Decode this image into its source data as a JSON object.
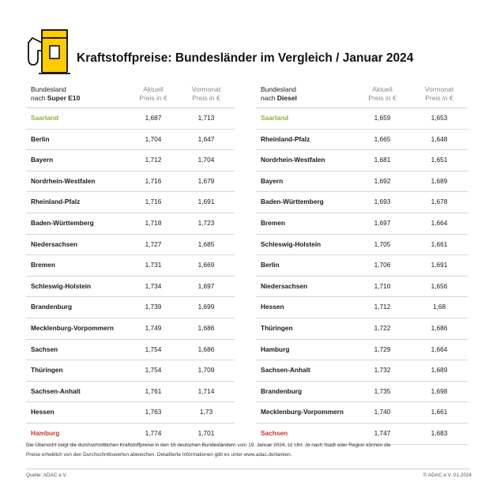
{
  "header": {
    "title": "Kraftstoffpreise: Bundesländer im Vergleich / Januar 2024"
  },
  "colors": {
    "cheapest": "#8fb339",
    "most_expensive": "#c0392b",
    "pump_yellow": "#ffcc00"
  },
  "icons": [
    "fuel-pump-icon"
  ],
  "super_e10": {
    "col1_line1": "Bundesland",
    "col1_line2_prefix": "nach ",
    "col1_line2_bold": "Super E10",
    "col2_line1": "Aktuell",
    "col2_line2": "Preis in €",
    "col3_line1": "Vormonat",
    "col3_line2": "Preis in €",
    "rows": [
      {
        "name": "Saarland",
        "current": "1,687",
        "previous": "1,713",
        "highlight": "green"
      },
      {
        "name": "Berlin",
        "current": "1,704",
        "previous": "1,647"
      },
      {
        "name": "Bayern",
        "current": "1,712",
        "previous": "1,704"
      },
      {
        "name": "Nordrhein-Westfalen",
        "current": "1,716",
        "previous": "1,679"
      },
      {
        "name": "Rheinland-Pfalz",
        "current": "1,716",
        "previous": "1,691"
      },
      {
        "name": "Baden-Württemberg",
        "current": "1,718",
        "previous": "1,723"
      },
      {
        "name": "Niedersachsen",
        "current": "1,727",
        "previous": "1,685"
      },
      {
        "name": "Bremen",
        "current": "1,731",
        "previous": "1,669"
      },
      {
        "name": "Schleswig-Holstein",
        "current": "1,734",
        "previous": "1,697"
      },
      {
        "name": "Brandenburg",
        "current": "1,739",
        "previous": "1,699"
      },
      {
        "name": "Mecklenburg-Vorpommern",
        "current": "1,749",
        "previous": "1,686"
      },
      {
        "name": "Sachsen",
        "current": "1,754",
        "previous": "1,686"
      },
      {
        "name": "Thüringen",
        "current": "1,754",
        "previous": "1,709"
      },
      {
        "name": "Sachsen-Anhalt",
        "current": "1,761",
        "previous": "1,714"
      },
      {
        "name": "Hessen",
        "current": "1,763",
        "previous": "1,73"
      },
      {
        "name": "Hamburg",
        "current": "1,774",
        "previous": "1,701",
        "highlight": "red"
      }
    ]
  },
  "diesel": {
    "col1_line1": "Bundesland",
    "col1_line2_prefix": "nach ",
    "col1_line2_bold": "Diesel",
    "col2_line1": "Aktuell",
    "col2_line2": "Preis in €",
    "col3_line1": "Vormonat",
    "col3_line2": "Preis in €",
    "rows": [
      {
        "name": "Saarland",
        "current": "1,659",
        "previous": "1,653",
        "highlight": "green"
      },
      {
        "name": "Rheinland-Pfalz",
        "current": "1,665",
        "previous": "1,648"
      },
      {
        "name": "Nordrhein-Westfalen",
        "current": "1,681",
        "previous": "1,651"
      },
      {
        "name": "Bayern",
        "current": "1,692",
        "previous": "1,689"
      },
      {
        "name": "Baden-Württemberg",
        "current": "1,693",
        "previous": "1,678"
      },
      {
        "name": "Bremen",
        "current": "1,697",
        "previous": "1,664"
      },
      {
        "name": "Schleswig-Holstein",
        "current": "1,705",
        "previous": "1,661"
      },
      {
        "name": "Berlin",
        "current": "1,706",
        "previous": "1,691"
      },
      {
        "name": "Niedersachsen",
        "current": "1,710",
        "previous": "1,656"
      },
      {
        "name": "Hessen",
        "current": "1,712",
        "previous": "1,68"
      },
      {
        "name": "Thüringen",
        "current": "1,722",
        "previous": "1,686"
      },
      {
        "name": "Hamburg",
        "current": "1,729",
        "previous": "1,664"
      },
      {
        "name": "Sachsen-Anhalt",
        "current": "1,732",
        "previous": "1,689"
      },
      {
        "name": "Brandenburg",
        "current": "1,735",
        "previous": "1,698"
      },
      {
        "name": "Mecklenburg-Vorpommern",
        "current": "1,740",
        "previous": "1,661"
      },
      {
        "name": "Sachsen",
        "current": "1,747",
        "previous": "1,683",
        "highlight": "red"
      }
    ]
  },
  "footnote": {
    "line1": "Die Übersicht zeigt die durchschnittlichen Kraftstoffpreise in den 16 deutschen Bundesländern vom 19. Januar 2024, 11 Uhr. Je nach Stadt oder Region können die",
    "line2": "Preise erheblich von den Durchschnittswerten abweichen. Detaillierte Informationen gibt es unter www.adac.de/tanken."
  },
  "footer": {
    "source": "Quelle: ADAC e.V.",
    "copyright": "© ADAC e.V. 01.2024"
  }
}
